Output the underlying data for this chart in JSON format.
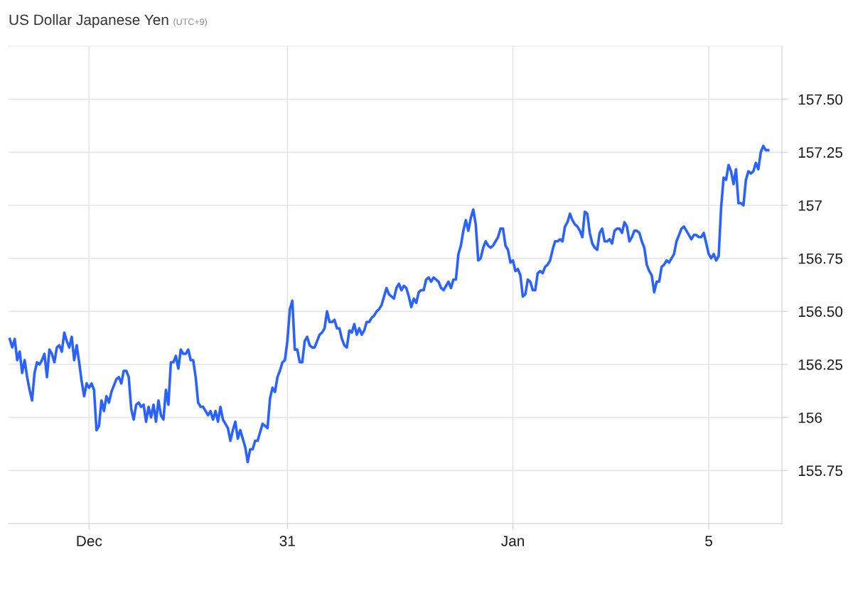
{
  "chart_data": {
    "type": "line",
    "title": "US Dollar Japanese Yen",
    "subtitle": "(UTC+9)",
    "categories": [
      null,
      null,
      null,
      null,
      null,
      null,
      null,
      null,
      null,
      null,
      null,
      null,
      null,
      null,
      null,
      null,
      null,
      null,
      null,
      null,
      null,
      null,
      null,
      null,
      null,
      null,
      null,
      null,
      null,
      null,
      null,
      null,
      "Dec",
      null,
      null,
      null,
      null,
      null,
      null,
      null,
      null,
      null,
      null,
      null,
      null,
      null,
      null,
      null,
      null,
      null,
      null,
      null,
      null,
      null,
      null,
      null,
      null,
      null,
      null,
      null,
      null,
      null,
      null,
      null,
      null,
      null,
      null,
      null,
      null,
      null,
      null,
      null,
      null,
      null,
      null,
      null,
      null,
      null,
      null,
      null,
      null,
      null,
      null,
      null,
      null,
      null,
      null,
      null,
      null,
      null,
      null,
      null,
      null,
      null,
      null,
      null,
      null,
      null,
      null,
      null,
      null,
      null,
      null,
      null,
      null,
      null,
      null,
      null,
      null,
      null,
      null,
      null,
      "31",
      null,
      null,
      null,
      null,
      null,
      null,
      null,
      null,
      null,
      null,
      null,
      null,
      null,
      null,
      null,
      null,
      null,
      null,
      null,
      null,
      null,
      null,
      null,
      null,
      null,
      null,
      null,
      null,
      null,
      null,
      null,
      null,
      null,
      null,
      null,
      null,
      null,
      null,
      null,
      null,
      null,
      null,
      null,
      null,
      null,
      null,
      null,
      null,
      null,
      null,
      null,
      null,
      null,
      null,
      null,
      null,
      null,
      null,
      null,
      null,
      null,
      null,
      null,
      null,
      null,
      null,
      null,
      null,
      null,
      null,
      null,
      null,
      null,
      null,
      null,
      null,
      null,
      null,
      null,
      null,
      null,
      null,
      null,
      null,
      null,
      null,
      null,
      null,
      null,
      null,
      "Jan",
      null,
      null,
      null,
      null,
      null,
      null,
      null,
      null,
      null,
      null,
      null,
      null,
      null,
      null,
      null,
      null,
      null,
      null,
      null,
      null,
      null,
      null,
      null,
      null,
      null,
      null,
      null,
      null,
      null,
      null,
      null,
      null,
      null,
      null,
      null,
      null,
      null,
      null,
      null,
      null,
      null,
      null,
      null,
      null,
      null,
      null,
      null,
      null,
      null,
      null,
      null,
      null,
      null,
      null,
      null,
      null,
      null,
      null,
      null,
      null,
      null,
      null,
      null,
      null,
      null,
      null,
      null,
      null,
      null,
      null,
      null,
      null,
      null,
      null,
      null,
      null,
      null,
      null,
      "5",
      null,
      null,
      null,
      null,
      null,
      null,
      null,
      null,
      null,
      null,
      null,
      null,
      null,
      null,
      null,
      null,
      null,
      null,
      null,
      null,
      null,
      null,
      null,
      null
    ],
    "ylim": [
      155.5,
      157.75
    ],
    "yticks": [
      155.75,
      156,
      {
        "value": 156.25,
        "label": "156.25"
      },
      {
        "value": 156.5,
        "label": "156.50"
      },
      156.75,
      157,
      157.25,
      {
        "value": 157.5,
        "label": "157.50"
      }
    ],
    "grid": true,
    "marker": "none",
    "line_style": "solid",
    "series": [
      {
        "color": "#2962ff",
        "values": [
          156.37,
          156.33,
          156.37,
          156.27,
          156.31,
          156.21,
          156.27,
          156.19,
          156.13,
          156.08,
          156.21,
          156.26,
          156.25,
          156.27,
          156.3,
          156.19,
          156.32,
          156.3,
          156.26,
          156.33,
          156.34,
          156.31,
          156.4,
          156.36,
          156.33,
          156.38,
          156.27,
          156.34,
          156.26,
          156.17,
          156.1,
          156.16,
          156.14,
          156.16,
          156.13,
          155.94,
          155.96,
          156.08,
          156.03,
          156.1,
          156.07,
          156.12,
          156.15,
          156.18,
          156.19,
          156.16,
          156.22,
          156.22,
          156.19,
          156.04,
          155.99,
          156.06,
          156.07,
          156.05,
          156.06,
          155.98,
          156.05,
          156.0,
          156.06,
          155.98,
          156.08,
          156.01,
          155.99,
          156.13,
          156.06,
          156.26,
          156.26,
          156.29,
          156.23,
          156.32,
          156.3,
          156.3,
          156.32,
          156.27,
          156.27,
          156.19,
          156.07,
          156.05,
          156.05,
          156.03,
          156.01,
          156.03,
          155.99,
          156.03,
          155.98,
          156.05,
          155.99,
          155.97,
          155.95,
          155.89,
          155.94,
          155.98,
          155.9,
          155.94,
          155.9,
          155.86,
          155.79,
          155.85,
          155.85,
          155.89,
          155.89,
          155.93,
          155.97,
          155.96,
          155.95,
          156.09,
          156.14,
          156.12,
          156.19,
          156.22,
          156.26,
          156.27,
          156.36,
          156.51,
          156.55,
          156.32,
          156.32,
          156.26,
          156.26,
          156.36,
          156.38,
          156.34,
          156.33,
          156.33,
          156.36,
          156.39,
          156.4,
          156.42,
          156.5,
          156.45,
          156.45,
          156.46,
          156.42,
          156.42,
          156.37,
          156.34,
          156.33,
          156.41,
          156.4,
          156.44,
          156.39,
          156.42,
          156.39,
          156.41,
          156.45,
          156.45,
          156.47,
          156.48,
          156.5,
          156.51,
          156.53,
          156.57,
          156.61,
          156.58,
          156.57,
          156.56,
          156.61,
          156.63,
          156.6,
          156.62,
          156.61,
          156.57,
          156.52,
          156.56,
          156.54,
          156.59,
          156.6,
          156.6,
          156.65,
          156.66,
          156.64,
          156.66,
          156.65,
          156.64,
          156.61,
          156.6,
          156.62,
          156.64,
          156.61,
          156.65,
          156.65,
          156.77,
          156.81,
          156.88,
          156.93,
          156.88,
          156.94,
          156.98,
          156.91,
          156.74,
          156.75,
          156.8,
          156.83,
          156.81,
          156.8,
          156.81,
          156.83,
          156.85,
          156.89,
          156.89,
          156.81,
          156.79,
          156.73,
          156.74,
          156.69,
          156.7,
          156.67,
          156.57,
          156.58,
          156.65,
          156.64,
          156.6,
          156.6,
          156.68,
          156.69,
          156.68,
          156.71,
          156.72,
          156.74,
          156.79,
          156.83,
          156.83,
          156.84,
          156.83,
          156.9,
          156.92,
          156.96,
          156.93,
          156.91,
          156.9,
          156.88,
          156.85,
          156.97,
          156.96,
          156.87,
          156.82,
          156.8,
          156.79,
          156.87,
          156.89,
          156.83,
          156.83,
          156.84,
          156.82,
          156.88,
          156.89,
          156.89,
          156.87,
          156.92,
          156.9,
          156.83,
          156.85,
          156.88,
          156.88,
          156.87,
          156.83,
          156.8,
          156.72,
          156.69,
          156.67,
          156.59,
          156.64,
          156.64,
          156.71,
          156.72,
          156.74,
          156.73,
          156.75,
          156.77,
          156.83,
          156.86,
          156.89,
          156.9,
          156.88,
          156.86,
          156.84,
          156.86,
          156.86,
          156.85,
          156.85,
          156.87,
          156.82,
          156.77,
          156.75,
          156.77,
          156.74,
          156.76,
          156.99,
          157.13,
          157.12,
          157.19,
          157.16,
          157.1,
          157.17,
          157.01,
          157.01,
          157.0,
          157.12,
          157.16,
          157.15,
          157.16,
          157.2,
          157.17,
          157.25,
          157.28,
          157.26,
          157.26
        ]
      }
    ]
  }
}
